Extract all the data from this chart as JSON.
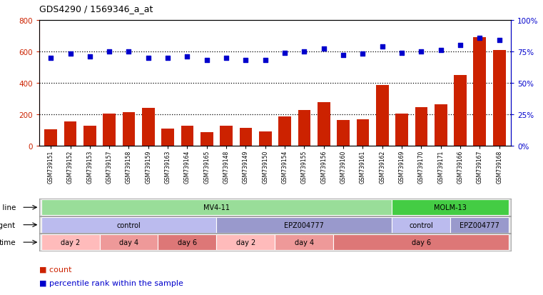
{
  "title": "GDS4290 / 1569346_a_at",
  "samples": [
    "GSM739151",
    "GSM739152",
    "GSM739153",
    "GSM739157",
    "GSM739158",
    "GSM739159",
    "GSM739163",
    "GSM739164",
    "GSM739165",
    "GSM739148",
    "GSM739149",
    "GSM739150",
    "GSM739154",
    "GSM739155",
    "GSM739156",
    "GSM739160",
    "GSM739161",
    "GSM739162",
    "GSM739169",
    "GSM739170",
    "GSM739171",
    "GSM739166",
    "GSM739167",
    "GSM739168"
  ],
  "counts": [
    105,
    155,
    125,
    205,
    215,
    240,
    110,
    125,
    85,
    125,
    115,
    90,
    185,
    225,
    275,
    162,
    168,
    385,
    205,
    245,
    265,
    450,
    690,
    610
  ],
  "percentiles": [
    70,
    73,
    71,
    75,
    75,
    70,
    70,
    71,
    68,
    70,
    68,
    68,
    74,
    75,
    77,
    72,
    73,
    79,
    74,
    75,
    76,
    80,
    86,
    84
  ],
  "bar_color": "#cc2200",
  "dot_color": "#0000cc",
  "ylim_left": [
    0,
    800
  ],
  "ylim_right": [
    0,
    100
  ],
  "yticks_left": [
    0,
    200,
    400,
    600,
    800
  ],
  "yticks_right": [
    0,
    25,
    50,
    75,
    100
  ],
  "ytick_labels_right": [
    "0%",
    "25%",
    "50%",
    "75%",
    "100%"
  ],
  "grid_lines": [
    200,
    400,
    600
  ],
  "cell_line_regions": [
    {
      "label": "MV4-11",
      "start": 0,
      "end": 18,
      "color": "#99dd99"
    },
    {
      "label": "MOLM-13",
      "start": 18,
      "end": 24,
      "color": "#44cc44"
    }
  ],
  "agent_regions": [
    {
      "label": "control",
      "start": 0,
      "end": 9,
      "color": "#bbbbee"
    },
    {
      "label": "EPZ004777",
      "start": 9,
      "end": 18,
      "color": "#9999cc"
    },
    {
      "label": "control",
      "start": 18,
      "end": 21,
      "color": "#bbbbee"
    },
    {
      "label": "EPZ004777",
      "start": 21,
      "end": 24,
      "color": "#9999cc"
    }
  ],
  "time_regions": [
    {
      "label": "day 2",
      "start": 0,
      "end": 3,
      "color": "#ffbbbb"
    },
    {
      "label": "day 4",
      "start": 3,
      "end": 6,
      "color": "#ee9999"
    },
    {
      "label": "day 6",
      "start": 6,
      "end": 9,
      "color": "#dd7777"
    },
    {
      "label": "day 2",
      "start": 9,
      "end": 12,
      "color": "#ffbbbb"
    },
    {
      "label": "day 4",
      "start": 12,
      "end": 15,
      "color": "#ee9999"
    },
    {
      "label": "day 6",
      "start": 15,
      "end": 24,
      "color": "#dd7777"
    }
  ],
  "bar_color_left": "#cc2200",
  "dot_color_blue": "#0000cc",
  "bg_color": "#ffffff"
}
